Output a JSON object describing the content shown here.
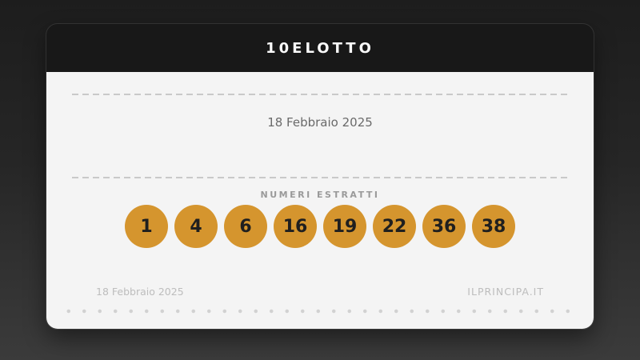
{
  "card": {
    "title": "10ELOTTO",
    "draw_date": "18 Febbraio 2025",
    "numbers_label": "NUMERI ESTRATTI",
    "numbers": [
      "1",
      "4",
      "6",
      "16",
      "19",
      "22",
      "36",
      "38"
    ],
    "footer": {
      "date": "18 Febbraio 2025",
      "site": "ILPRINCIPA.IT"
    }
  },
  "colors": {
    "ball": "#d5952e",
    "header_bg": "#181818",
    "body_bg": "#f4f4f4",
    "page_top": "#1d1d1d",
    "page_bottom": "#3b3b3b"
  }
}
